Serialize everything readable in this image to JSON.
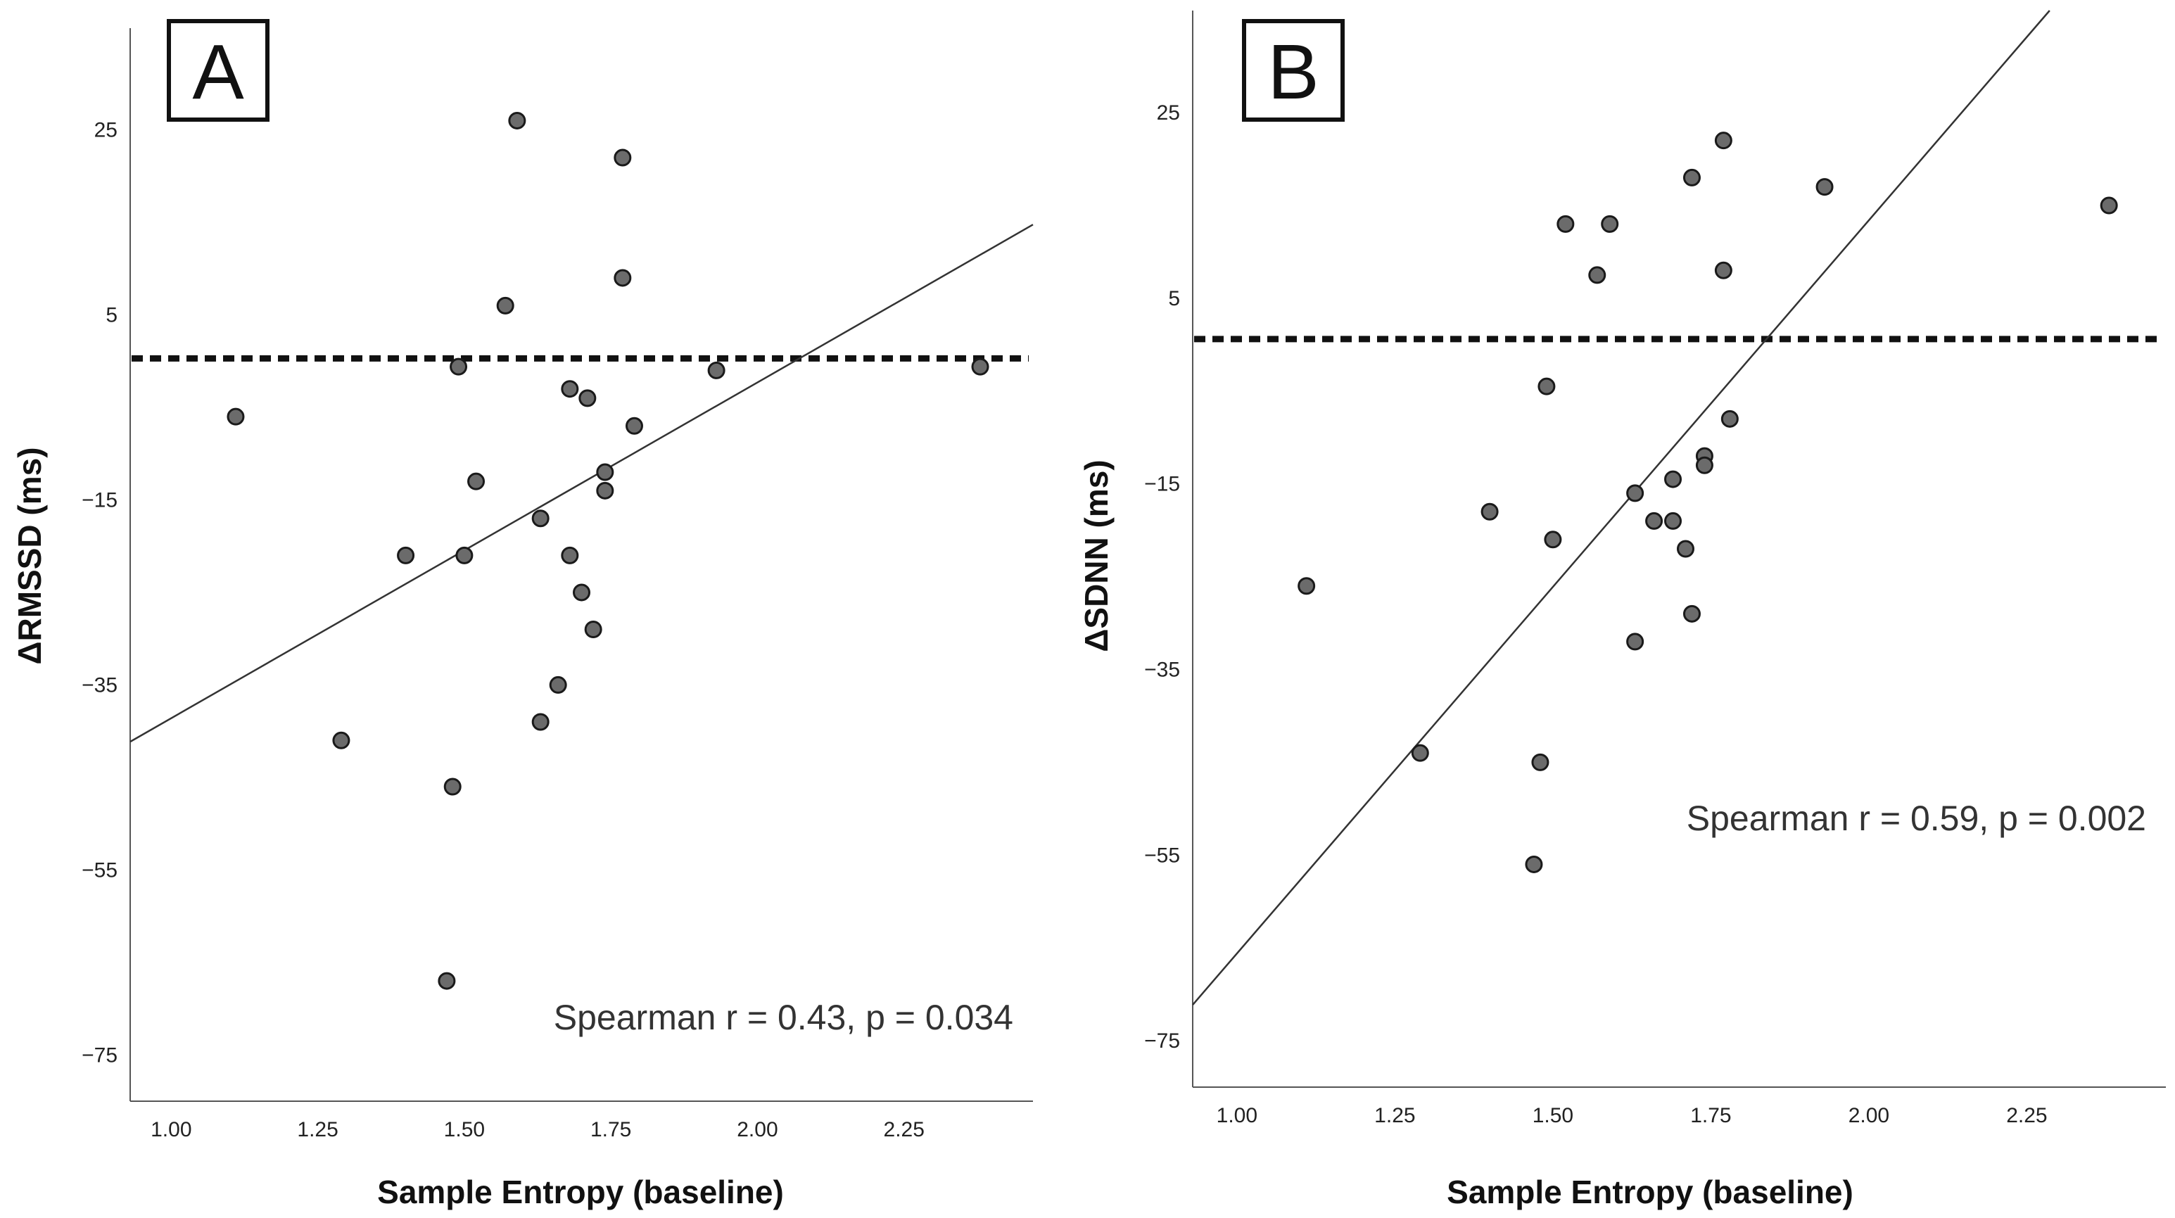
{
  "chart_data": [
    {
      "type": "scatter",
      "panel_label": "A",
      "xlabel": "Sample Entropy (baseline)",
      "ylabel": "ΔRMSSD (ms)",
      "xlim": [
        0.93,
        2.47
      ],
      "ylim": [
        -80,
        36
      ],
      "x_ticks": [
        1.0,
        1.25,
        1.5,
        1.75,
        2.0,
        2.25
      ],
      "x_tick_labels": [
        "1.00",
        "1.25",
        "1.50",
        "1.75",
        "2.00",
        "2.25"
      ],
      "y_ticks": [
        25,
        5,
        -15,
        -35,
        -55,
        -75
      ],
      "y_tick_labels": [
        "25",
        "5",
        "−15",
        "−35",
        "−55",
        "−75"
      ],
      "annotation": "Spearman r = 0.43, p = 0.034",
      "reference_line_y": 0.3,
      "fit_line": {
        "intercept": -74.9,
        "slope": 36.3
      },
      "points": [
        {
          "x": 1.11,
          "y": -6
        },
        {
          "x": 1.29,
          "y": -41
        },
        {
          "x": 1.4,
          "y": -21
        },
        {
          "x": 1.47,
          "y": -67
        },
        {
          "x": 1.48,
          "y": -46
        },
        {
          "x": 1.49,
          "y": -0.6
        },
        {
          "x": 1.5,
          "y": -21
        },
        {
          "x": 1.52,
          "y": -13
        },
        {
          "x": 1.57,
          "y": 6
        },
        {
          "x": 1.59,
          "y": 26
        },
        {
          "x": 1.63,
          "y": -17
        },
        {
          "x": 1.63,
          "y": -39
        },
        {
          "x": 1.66,
          "y": -35
        },
        {
          "x": 1.68,
          "y": -3
        },
        {
          "x": 1.68,
          "y": -21
        },
        {
          "x": 1.7,
          "y": -25
        },
        {
          "x": 1.71,
          "y": -4
        },
        {
          "x": 1.72,
          "y": -29
        },
        {
          "x": 1.74,
          "y": -12
        },
        {
          "x": 1.74,
          "y": -14
        },
        {
          "x": 1.77,
          "y": 22
        },
        {
          "x": 1.77,
          "y": 9
        },
        {
          "x": 1.79,
          "y": -7
        },
        {
          "x": 1.93,
          "y": -1
        },
        {
          "x": 2.38,
          "y": -0.6
        }
      ]
    },
    {
      "type": "scatter",
      "panel_label": "B",
      "xlabel": "Sample Entropy (baseline)",
      "ylabel": "ΔSDNN (ms)",
      "xlim": [
        0.93,
        2.47
      ],
      "ylim": [
        -80,
        36
      ],
      "x_ticks": [
        1.0,
        1.25,
        1.5,
        1.75,
        2.0,
        2.25
      ],
      "x_tick_labels": [
        "1.00",
        "1.25",
        "1.50",
        "1.75",
        "2.00",
        "2.25"
      ],
      "y_ticks": [
        25,
        5,
        -15,
        -35,
        -55,
        -75
      ],
      "y_tick_labels": [
        "25",
        "5",
        "−15",
        "−35",
        "−55",
        "−75"
      ],
      "annotation": "Spearman r = 0.59, p = 0.002",
      "reference_line_y": 0.6,
      "fit_line": {
        "intercept": -144.6,
        "slope": 79.0
      },
      "points": [
        {
          "x": 1.11,
          "y": -26
        },
        {
          "x": 1.29,
          "y": -44
        },
        {
          "x": 1.4,
          "y": -18
        },
        {
          "x": 1.48,
          "y": -45
        },
        {
          "x": 1.47,
          "y": -56
        },
        {
          "x": 1.49,
          "y": -4.5
        },
        {
          "x": 1.5,
          "y": -21
        },
        {
          "x": 1.52,
          "y": 13
        },
        {
          "x": 1.57,
          "y": 7.5
        },
        {
          "x": 1.59,
          "y": 13
        },
        {
          "x": 1.63,
          "y": -16
        },
        {
          "x": 1.63,
          "y": -32
        },
        {
          "x": 1.66,
          "y": -19
        },
        {
          "x": 1.69,
          "y": -19
        },
        {
          "x": 1.69,
          "y": -14.5
        },
        {
          "x": 1.71,
          "y": -22
        },
        {
          "x": 1.72,
          "y": 18
        },
        {
          "x": 1.72,
          "y": -29
        },
        {
          "x": 1.74,
          "y": -12
        },
        {
          "x": 1.74,
          "y": -13
        },
        {
          "x": 1.77,
          "y": 22
        },
        {
          "x": 1.77,
          "y": 8
        },
        {
          "x": 1.78,
          "y": -8
        },
        {
          "x": 1.93,
          "y": 17
        },
        {
          "x": 2.38,
          "y": 15
        }
      ]
    }
  ]
}
